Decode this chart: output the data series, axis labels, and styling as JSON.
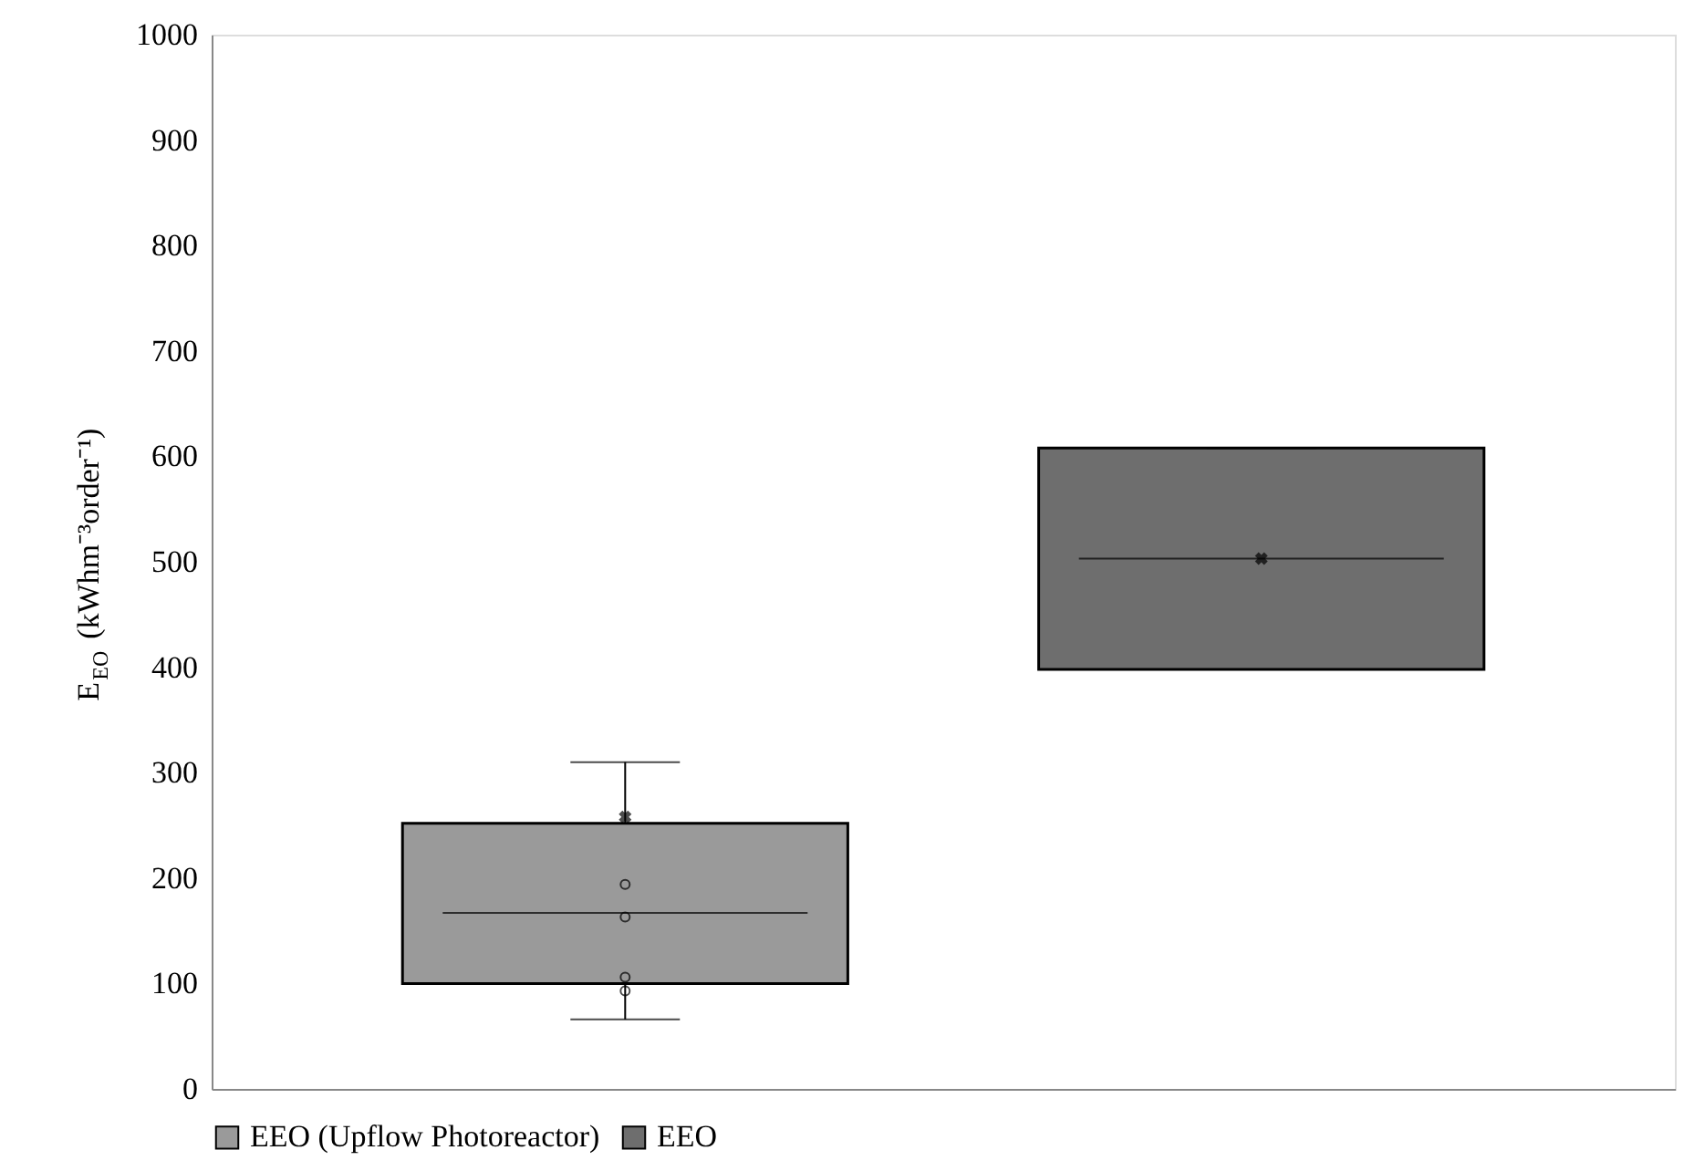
{
  "chart_data": {
    "type": "box",
    "ylabel": "E$_{EO}$ (kWhm⁻³order⁻¹)",
    "categories": [
      null,
      null
    ],
    "series": [
      {
        "name": "EEO (Upflow Photoreactor)",
        "color": "#9a9a9a",
        "boxes": [
          {
            "low": 66,
            "q1": 100,
            "median": 167,
            "q3": 252,
            "high": 310,
            "mean": 258,
            "outliers": [
              194,
              163,
              106,
              93
            ]
          },
          null
        ]
      },
      {
        "name": "EEO",
        "color": "#6e6e6e",
        "boxes": [
          null,
          {
            "low": 398,
            "q1": 398,
            "median": 503,
            "q3": 608,
            "high": 608,
            "mean": 503
          }
        ]
      }
    ],
    "ylim": [
      0,
      1000
    ],
    "yticks": [
      0,
      100,
      200,
      300,
      400,
      500,
      600,
      700,
      800,
      900,
      1000
    ],
    "grid": false,
    "legend": "bottom",
    "tick_labels": "y"
  }
}
